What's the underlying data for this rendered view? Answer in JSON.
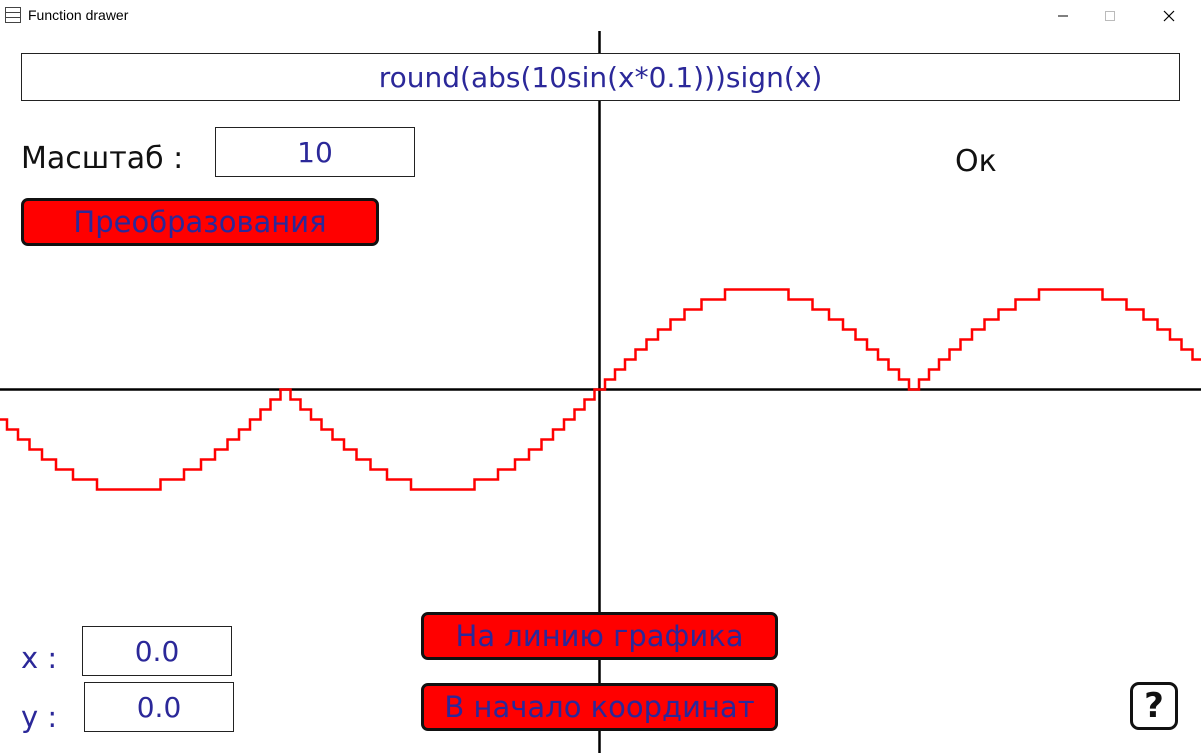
{
  "window": {
    "title": "Function drawer",
    "icon": "app-grid-icon",
    "controls": [
      "minimize-icon",
      "maximize-icon",
      "close-icon"
    ]
  },
  "formula": {
    "value": "round(abs(10sin(x*0.1)))sign(x)"
  },
  "scale": {
    "label": "Масштаб :",
    "value": "10"
  },
  "status": {
    "text": "Ок"
  },
  "buttons": {
    "transform": "Преобразования",
    "to_line": "На линию графика",
    "to_origin": "В начало координат",
    "help": "?"
  },
  "coords": {
    "x_label": "x :",
    "x_value": "0.0",
    "y_label": "y :",
    "y_value": "0.0"
  },
  "colors": {
    "curve": "#ff0000",
    "axes": "#000000",
    "text_accent": "#2b2899",
    "button_bg": "#ff0000"
  },
  "graph": {
    "function": "round(abs(10*sin(x*0.1)))*sign(x)",
    "scale": 10,
    "origin": [
      0,
      0
    ]
  }
}
